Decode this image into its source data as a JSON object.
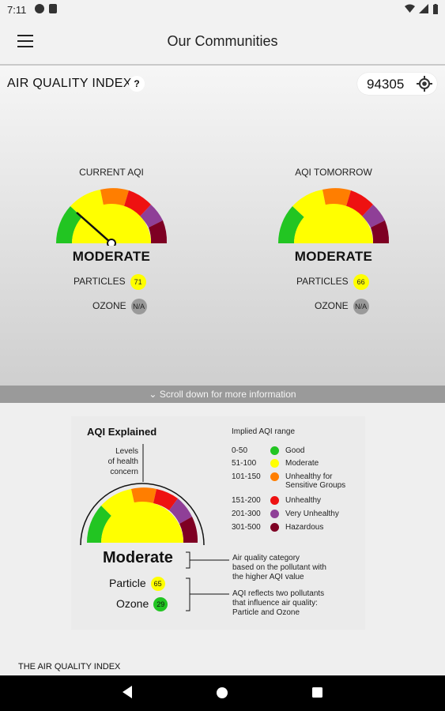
{
  "status": {
    "time": "7:11"
  },
  "appbar": {
    "title": "Our Communities"
  },
  "aqi": {
    "title": "AIR QUALITY INDEX",
    "help": "?",
    "zip": "94305"
  },
  "current": {
    "caption": "CURRENT AQI",
    "category": "MODERATE",
    "particles_label": "PARTICLES",
    "particles_value": "71",
    "ozone_label": "OZONE",
    "ozone_value": "N/A"
  },
  "tomorrow": {
    "caption": "AQI TOMORROW",
    "category": "MODERATE",
    "particles_label": "PARTICLES",
    "particles_value": "66",
    "ozone_label": "OZONE",
    "ozone_value": "N/A"
  },
  "scroll_hint": "Scroll down for more information",
  "explained": {
    "title": "AQI Explained",
    "levels_1": "Levels",
    "levels_2": "of health",
    "levels_3": "concern",
    "range_title": "Implied AQI range",
    "legend": [
      {
        "range": "0-50",
        "name": "Good",
        "color": "#22c522"
      },
      {
        "range": "51-100",
        "name": "Moderate",
        "color": "#ffff00"
      },
      {
        "range": "101-150",
        "name": "Unhealthy for",
        "name2": "Sensitive Groups",
        "color": "#ff7e00"
      },
      {
        "range": "151-200",
        "name": "Unhealthy",
        "color": "#ee1111"
      },
      {
        "range": "201-300",
        "name": "Very Unhealthy",
        "color": "#8f3f97"
      },
      {
        "range": "301-500",
        "name": "Hazardous",
        "color": "#7e0023"
      }
    ],
    "category": "Moderate",
    "particle_label": "Particle",
    "particle_value": "65",
    "ozone_label": "Ozone",
    "ozone_value": "29",
    "note1_1": "Air quality category",
    "note1_2": "based on the pollutant with",
    "note1_3": "the higher AQI value",
    "note2_1": "AQI reflects two pollutants",
    "note2_2": "that influence air quality:",
    "note2_3": "Particle and Ozone"
  },
  "footer_title": "THE AIR QUALITY INDEX",
  "colors": {
    "good": "#22c522",
    "moderate": "#ffff00",
    "usg": "#ff7e00",
    "unhealthy": "#ee1111",
    "very_unhealthy": "#8f3f97",
    "hazardous": "#7e0023",
    "na": "#9a9a9a"
  }
}
